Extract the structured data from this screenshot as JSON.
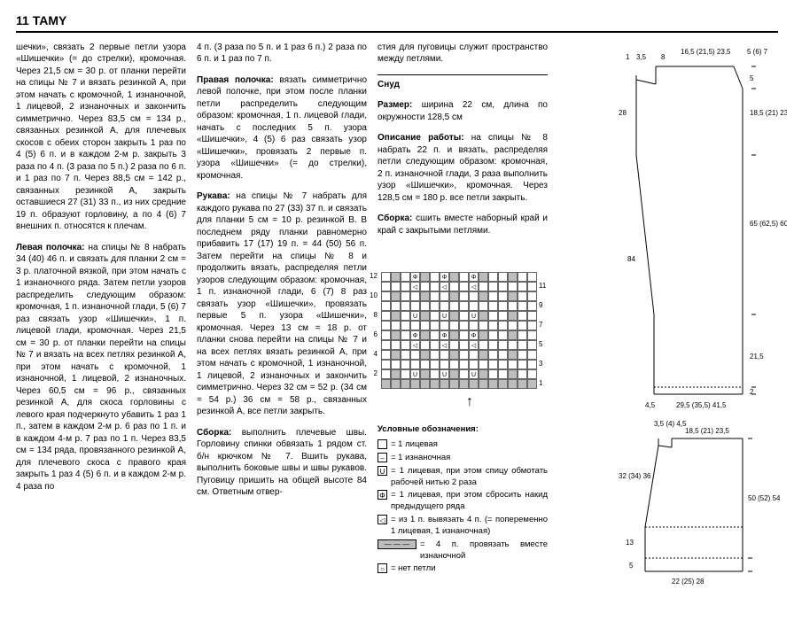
{
  "header": "11 TAMY",
  "col1": {
    "p1": "шечки», связать 2 первые петли узора «Шишечки» (= до стрелки), кромочная. Через 21,5 см = 30 р. от планки перейти на спицы № 7 и вязать резинкой А, при этом начать с кромочной, 1 изнаночной, 1 лицевой, 2 изнаночных и закончить симметрично. Через 83,5 см = 134 р., связанных резинкой А, для плечевых скосов с обеих сторон закрыть 1 раз по 4 (5) 6 п. и в каждом 2-м р. закрыть 3 раза по 4 п. (3 раза по 5 п.) 2 раза по 6 п. и 1 раз по 7 п. Через 88,5 см = 142 р., связанных резинкой А, закрыть оставшиеся 27 (31) 33 п., из них средние 19 п. образуют горловину, а по 4 (6) 7 внешних п. относятся к плечам.",
    "p2t": "Левая полочка:",
    "p2": " на спицы № 8 набрать 34 (40) 46 п. и связать для планки 2 см = 3 р. платочной вязкой, при этом начать с 1 изнаночного ряда. Затем петли узоров распределить следующим образом: кромочная, 1 п. изнаночной глади, 5 (6) 7 раз связать узор «Шишечки», 1 п. лицевой глади, кромочная. Через 21,5 см = 30 р. от планки перейти на спицы № 7 и вязать на всех петлях резинкой А, при этом начать с кромочной, 1 изнаночной, 1 лицевой, 2 изнаночных. Через 60,5 см = 96 р., связанных резинкой А, для скоса горловины с левого края подчеркнуто убавить 1 раз 1 п., затем в каждом 2-м р. 6 раз по 1 п. и в каждом 4-м р. 7 раз по 1 п. Через 83,5 см = 134 ряда, провязанного резинкой А, для плечевого скоса с правого края закрыть 1 раз 4 (5) 6 п. и в каждом 2-м р. 4 раза по"
  },
  "col2": {
    "p1": "4 п. (3 раза по 5 п. и 1 раз 6 п.) 2 раза по 6 п. и 1 раз по 7 п.",
    "p2t": "Правая полочка:",
    "p2": " вязать симметрично левой полочке, при этом после планки петли распределить следующим образом: кромочная, 1 п. лицевой глади, начать с последних 5 п. узора «Шишечки», 4 (5) 6 раз связать узор «Шишечки», провязать 2 первые п. узора «Шишечки» (= до стрелки), кромочная.",
    "p3t": "Рукава:",
    "p3": " на спицы № 7 набрать для каждого рукава по 27 (33) 37 п. и связать для планки 5 см = 10 р. резинкой В. В последнем ряду планки равномерно прибавить 17 (17) 19 п. = 44 (50) 56 п. Затем перейти на спицы № 8 и продолжить вязать, распределяя петли узоров следующим образом: кромочная, 1 п. изнаночной глади, 6 (7) 8 раз связать узор «Шишечки», провязать первые 5 п. узора «Шишечки», кромочная. Через 13 см = 18 р. от планки снова перейти на спицы № 7 и на всех петлях вязать резинкой А, при этом начать с кромочной, 1 изнаночной, 1 лицевой, 2 изнаночных и закончить симметрично. Через 32 см = 52 р. (34 см = 54 р.) 36 см = 58 р., связанных резинкой А, все петли закрыть.",
    "p4t": "Сборка:",
    "p4": " выполнить плечевые швы. Горловину спинки обвязать 1 рядом ст. б/н крючком № 7. Вшить рукава, выполнить боковые швы и швы рукавов. Пуговицу пришить на общей высоте 84 см. Ответным отвер-"
  },
  "col3": {
    "p1": "стия для пуговицы служит пространство между петлями.",
    "p2t": "Снуд",
    "p3t": "Размер:",
    "p3": " ширина 22 см, длина по окружности 128,5 см",
    "p4t": "Описание работы:",
    "p4": " на спицы № 8 набрать 22 п. и вязать, распределяя петли следующим образом: кромочная, 2 п. изнаночной глади, 3 раза выполнить узор «Шишечки», кромочная. Через 128,5 см = 180 р. все петли закрыть.",
    "p5t": "Сборка:",
    "p5": " сшить вместе наборный край и край с закрытыми петлями."
  },
  "chart": {
    "rows_left": [
      "12",
      "10",
      "8",
      "6",
      "4",
      "2"
    ],
    "rows_right": [
      "11",
      "9",
      "7",
      "5",
      "3",
      "1"
    ],
    "grid": [
      [
        "",
        "g",
        "",
        "Φ",
        "g",
        "",
        "Φ",
        "g",
        "",
        "Φ",
        "g",
        "",
        "",
        "g",
        "",
        ""
      ],
      [
        "",
        "",
        "",
        "◁",
        "",
        "",
        "◁",
        "",
        "",
        "◁",
        "",
        "",
        "",
        "",
        "",
        ""
      ],
      [
        "",
        "g",
        "",
        "",
        "g",
        "",
        "",
        "g",
        "",
        "",
        "g",
        "",
        "",
        "g",
        "",
        ""
      ],
      [
        "",
        "",
        "",
        "",
        "",
        "",
        "",
        "",
        "",
        "",
        "",
        "",
        "",
        "",
        "",
        ""
      ],
      [
        "",
        "g",
        "",
        "U",
        "g",
        "",
        "U",
        "g",
        "",
        "U",
        "g",
        "",
        "",
        "g",
        "",
        ""
      ],
      [
        "",
        "",
        "",
        "",
        "",
        "",
        "",
        "",
        "",
        "",
        "",
        "",
        "",
        "",
        "",
        ""
      ],
      [
        "",
        "g",
        "",
        "Φ",
        "g",
        "",
        "Φ",
        "g",
        "",
        "Φ",
        "g",
        "",
        "",
        "g",
        "",
        ""
      ],
      [
        "",
        "",
        "",
        "◁",
        "",
        "",
        "◁",
        "",
        "",
        "◁",
        "",
        "",
        "",
        "",
        "",
        ""
      ],
      [
        "",
        "g",
        "",
        "",
        "g",
        "",
        "",
        "g",
        "",
        "",
        "g",
        "",
        "",
        "g",
        "",
        ""
      ],
      [
        "",
        "",
        "",
        "",
        "",
        "",
        "",
        "",
        "",
        "",
        "",
        "",
        "",
        "",
        "",
        ""
      ],
      [
        "",
        "g",
        "",
        "U",
        "g",
        "",
        "U",
        "g",
        "",
        "U",
        "g",
        "",
        "",
        "g",
        "",
        ""
      ],
      [
        "g",
        "g",
        "g",
        "g",
        "g",
        "g",
        "g",
        "g",
        "g",
        "g",
        "g",
        "g",
        "g",
        "g",
        "g",
        "g"
      ]
    ]
  },
  "legend": {
    "title": "Условные обозначения:",
    "items": [
      {
        "sym": "",
        "txt": "= 1 лицевая"
      },
      {
        "sym": "–",
        "txt": "= 1 изнаночная"
      },
      {
        "sym": "U",
        "txt": "= 1 лицевая, при этом спицу обмотать рабочей нитью 2 раза"
      },
      {
        "sym": "Φ",
        "txt": "= 1 лицевая, при этом сбросить накид предыдущего ряда"
      },
      {
        "sym": "◁",
        "txt": "= из 1 п. вывязать 4 п. (= попеременно 1 лицевая, 1 изнаночная)"
      },
      {
        "sym4": "— — —",
        "txt": "= 4 п. провязать вместе изнаночной"
      },
      {
        "sym": "○",
        "txt": "= нет петли"
      }
    ]
  },
  "schem1": {
    "top_left": "1",
    "top_dim1": "3,5",
    "top_mid": "8",
    "top_dim2": "16,5\n(21,5) 23,5",
    "top_right": "5\n(6)\n7",
    "right_5": "5",
    "right_18": "18,5\n(21)\n23,5",
    "right_65": "65\n(62,5)\n60",
    "left_28": "28",
    "left_84": "84",
    "right_21": "21,5",
    "bot_2": "2",
    "bot_l": "4,5",
    "bot_m": "29,5 (35,5) 41,5"
  },
  "schem2": {
    "top_l": "3,5\n(4)\n4,5",
    "top_r": "18,5 (21) 23,5",
    "left_32": "32\n(34)\n36",
    "right_50": "50\n(52)\n54",
    "left_13": "13",
    "left_5": "5",
    "bot": "22 (25) 28"
  }
}
